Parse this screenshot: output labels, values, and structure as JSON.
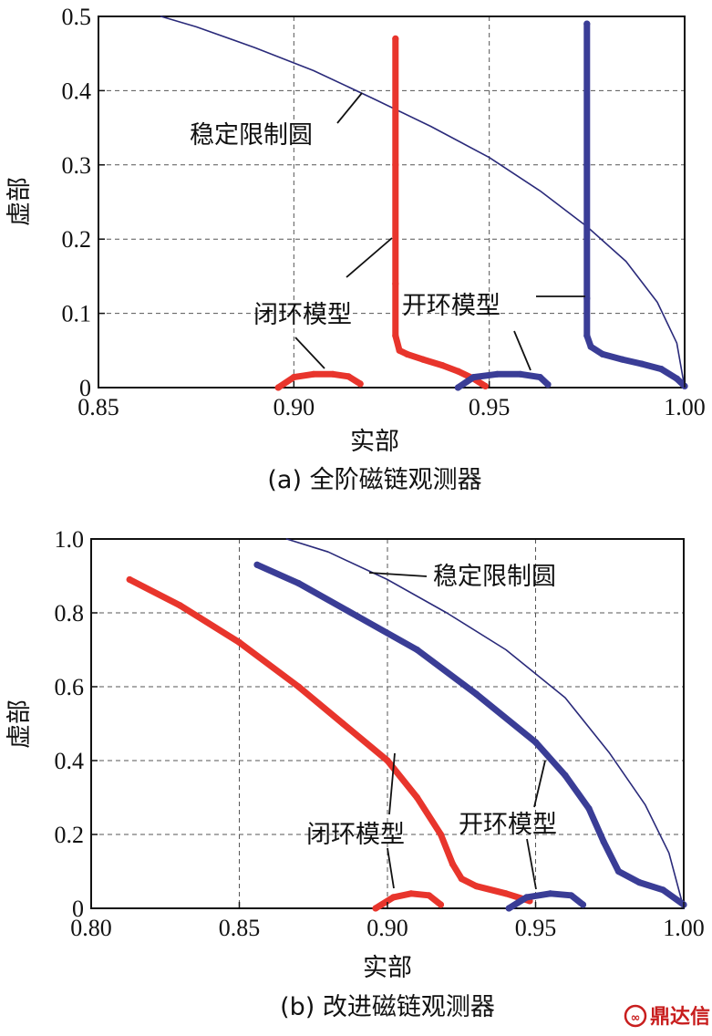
{
  "chart_data": [
    {
      "type": "line",
      "caption": "(a) 全阶磁链观测器",
      "xlabel": "实部",
      "ylabel": "虚部",
      "xlim": [
        0.85,
        1.0
      ],
      "ylim": [
        0,
        0.5
      ],
      "xticks": [
        "0.85",
        "0.90",
        "0.95",
        "1.00"
      ],
      "yticks": [
        "0",
        "0.1",
        "0.2",
        "0.3",
        "0.4",
        "0.5"
      ],
      "grid": true,
      "annotations": [
        "稳定限制圆",
        "闭环模型",
        "开环模型"
      ],
      "series": [
        {
          "name": "稳定限制圆",
          "color": "#2a2a7a",
          "x": [
            0.866,
            0.875,
            0.89,
            0.905,
            0.92,
            0.935,
            0.95,
            0.963,
            0.975,
            0.985,
            0.993,
            0.998,
            1.0
          ],
          "y": [
            0.5,
            0.486,
            0.458,
            0.427,
            0.39,
            0.352,
            0.31,
            0.265,
            0.217,
            0.17,
            0.115,
            0.06,
            0.0
          ]
        },
        {
          "name": "闭环模型",
          "color": "#e8352c",
          "x": [
            0.896,
            0.9,
            0.905,
            0.91,
            0.914,
            0.917,
            0.926,
            0.926,
            0.926,
            0.926,
            0.927,
            0.929,
            0.933,
            0.938,
            0.942,
            0.946,
            0.949
          ],
          "y": [
            0.0,
            0.014,
            0.018,
            0.018,
            0.015,
            0.005,
            0.47,
            0.3,
            0.14,
            0.07,
            0.05,
            0.045,
            0.038,
            0.03,
            0.022,
            0.012,
            0.002
          ]
        },
        {
          "name": "开环模型",
          "color": "#3a3d96",
          "x": [
            0.942,
            0.946,
            0.952,
            0.958,
            0.963,
            0.965,
            0.975,
            0.975,
            0.975,
            0.975,
            0.976,
            0.979,
            0.984,
            0.989,
            0.994,
            0.998,
            1.0
          ],
          "y": [
            0.0,
            0.014,
            0.018,
            0.018,
            0.014,
            0.004,
            0.49,
            0.3,
            0.12,
            0.07,
            0.055,
            0.045,
            0.038,
            0.032,
            0.025,
            0.012,
            0.002
          ]
        }
      ]
    },
    {
      "type": "line",
      "caption": "(b) 改进磁链观测器",
      "xlabel": "实部",
      "ylabel": "虚部",
      "xlim": [
        0.8,
        1.0
      ],
      "ylim": [
        0,
        1.0
      ],
      "xticks": [
        "0.80",
        "0.85",
        "0.90",
        "0.95",
        "1.00"
      ],
      "yticks": [
        "0",
        "0.2",
        "0.4",
        "0.6",
        "0.8",
        "1.0"
      ],
      "grid": true,
      "annotations": [
        "稳定限制圆",
        "闭环模型",
        "开环模型"
      ],
      "series": [
        {
          "name": "稳定限制圆",
          "color": "#2a2a7a",
          "x": [
            0.866,
            0.88,
            0.9,
            0.92,
            0.94,
            0.96,
            0.975,
            0.987,
            0.995,
            1.0
          ],
          "y": [
            1.0,
            0.965,
            0.89,
            0.8,
            0.7,
            0.57,
            0.42,
            0.28,
            0.15,
            0.0
          ]
        },
        {
          "name": "闭环模型",
          "color": "#e8352c",
          "x": [
            0.813,
            0.83,
            0.85,
            0.87,
            0.885,
            0.9,
            0.91,
            0.918,
            0.922,
            0.925,
            0.93,
            0.94,
            0.948,
            0.896,
            0.902,
            0.908,
            0.914,
            0.918
          ],
          "y": [
            0.89,
            0.82,
            0.72,
            0.6,
            0.5,
            0.4,
            0.3,
            0.2,
            0.12,
            0.08,
            0.06,
            0.04,
            0.02,
            0.0,
            0.03,
            0.04,
            0.035,
            0.01
          ]
        },
        {
          "name": "开环模型",
          "color": "#3a3d96",
          "x": [
            0.856,
            0.87,
            0.89,
            0.91,
            0.93,
            0.95,
            0.96,
            0.968,
            0.973,
            0.978,
            0.985,
            0.993,
            1.0,
            0.941,
            0.947,
            0.955,
            0.962,
            0.966
          ],
          "y": [
            0.93,
            0.88,
            0.79,
            0.7,
            0.58,
            0.45,
            0.36,
            0.27,
            0.18,
            0.1,
            0.07,
            0.05,
            0.01,
            0.0,
            0.03,
            0.04,
            0.035,
            0.01
          ]
        }
      ]
    }
  ],
  "watermark": {
    "text": "鼎达信",
    "color": "#c81e1e"
  }
}
